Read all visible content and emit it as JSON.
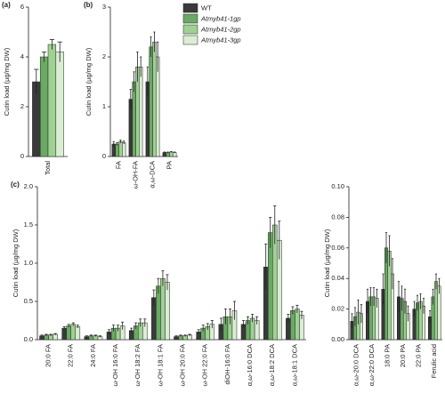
{
  "chart_data": [
    {
      "type": "bar",
      "label": "(a)",
      "ylabel": "Cutin load (µg/mg DW)",
      "categories": [
        "Total"
      ],
      "series": [
        {
          "color": "#3a3a3a",
          "values": [
            3.0
          ],
          "errors": [
            0.5
          ]
        },
        {
          "color": "#6aaa64",
          "values": [
            4.0
          ],
          "errors": [
            0.2
          ]
        },
        {
          "color": "#9fd193",
          "values": [
            4.5
          ],
          "errors": [
            0.2
          ]
        },
        {
          "color": "#d9eed3",
          "values": [
            4.2
          ],
          "errors": [
            0.4
          ]
        }
      ],
      "ylim": [
        0,
        6
      ],
      "yticks": [
        0,
        2,
        4,
        6
      ]
    },
    {
      "type": "bar",
      "label": "(b)",
      "ylabel": "Cutin load (µg/mg DW)",
      "categories": [
        "FA",
        "ω-OH-FA",
        "α,ω-DCA",
        "PA"
      ],
      "series": [
        {
          "name": "WT",
          "color": "#3a3a3a",
          "values": [
            0.25,
            1.15,
            1.5,
            0.08
          ],
          "errors": [
            0.05,
            0.2,
            0.3,
            0.01
          ]
        },
        {
          "name": "Atmyb41-1gp",
          "color": "#6aaa64",
          "values": [
            0.25,
            1.5,
            2.2,
            0.08
          ],
          "errors": [
            0.03,
            0.2,
            0.2,
            0.01
          ]
        },
        {
          "name": "Atmyb41-2gp",
          "color": "#9fd193",
          "values": [
            0.3,
            1.8,
            2.3,
            0.09
          ],
          "errors": [
            0.03,
            0.3,
            0.2,
            0.01
          ]
        },
        {
          "name": "Atmyb41-3gp",
          "color": "#d9eed3",
          "values": [
            0.28,
            1.8,
            2.0,
            0.08
          ],
          "errors": [
            0.03,
            0.2,
            0.3,
            0.01
          ]
        }
      ],
      "ylim": [
        0,
        3
      ],
      "yticks": [
        0,
        1,
        2,
        3
      ],
      "legend": true
    },
    {
      "type": "bar",
      "label": "(c)",
      "ylabel": "Cutin load (µg/mg DW)",
      "categories": [
        "20:0 FA",
        "22:0 FA",
        "24:0 FA",
        "ω-OH 16:0 FA",
        "ω-OH 18:2 FA",
        "ω-OH 18:1 FA",
        "ω-OH 20:0 FA",
        "ω-OH 22:0 FA",
        "diOH-16:0 FA",
        "α,ω-16:0 DCA",
        "α,ω-18:2 DCA",
        "α,ω-18:1 DCA"
      ],
      "series": [
        {
          "color": "#3a3a3a",
          "values": [
            0.05,
            0.15,
            0.04,
            0.1,
            0.12,
            0.55,
            0.04,
            0.1,
            0.2,
            0.2,
            0.95,
            0.28
          ],
          "errors": [
            0.01,
            0.02,
            0.01,
            0.03,
            0.03,
            0.1,
            0.01,
            0.03,
            0.08,
            0.05,
            0.3,
            0.05
          ]
        },
        {
          "color": "#6aaa64",
          "values": [
            0.06,
            0.18,
            0.05,
            0.15,
            0.18,
            0.7,
            0.05,
            0.15,
            0.3,
            0.25,
            1.4,
            0.38
          ],
          "errors": [
            0.01,
            0.02,
            0.01,
            0.04,
            0.04,
            0.1,
            0.01,
            0.04,
            0.1,
            0.05,
            0.2,
            0.05
          ]
        },
        {
          "color": "#9fd193",
          "values": [
            0.06,
            0.2,
            0.05,
            0.15,
            0.22,
            0.8,
            0.05,
            0.17,
            0.3,
            0.28,
            1.5,
            0.4
          ],
          "errors": [
            0.01,
            0.02,
            0.01,
            0.04,
            0.05,
            0.1,
            0.01,
            0.04,
            0.1,
            0.05,
            0.25,
            0.05
          ]
        },
        {
          "color": "#d9eed3",
          "values": [
            0.07,
            0.17,
            0.04,
            0.18,
            0.22,
            0.75,
            0.06,
            0.2,
            0.38,
            0.25,
            1.3,
            0.32
          ],
          "errors": [
            0.01,
            0.02,
            0.01,
            0.05,
            0.05,
            0.1,
            0.01,
            0.05,
            0.12,
            0.05,
            0.25,
            0.05
          ]
        }
      ],
      "ylim": [
        0,
        2
      ],
      "yticks": [
        {
          "value": 0,
          "label": "0.0"
        },
        {
          "value": 0.5,
          "label": "0.5"
        },
        {
          "value": 1,
          "label": "1.0"
        },
        {
          "value": 1.5,
          "label": "1.5"
        },
        {
          "value": 2,
          "label": "2.0"
        }
      ]
    },
    {
      "type": "bar",
      "ylabel": "Cutin load (µg/mg DW)",
      "categories": [
        "α,ω-20:0 DCA",
        "α,ω-22:0 DCA",
        "18:0 PA",
        "20:0 PA",
        "22:0 PA",
        "Ferulic acid"
      ],
      "series": [
        {
          "color": "#3a3a3a",
          "values": [
            0.012,
            0.025,
            0.033,
            0.028,
            0.02,
            0.015
          ],
          "errors": [
            0.005,
            0.008,
            0.01,
            0.01,
            0.005,
            0.004
          ]
        },
        {
          "color": "#6aaa64",
          "values": [
            0.015,
            0.028,
            0.06,
            0.027,
            0.024,
            0.028
          ],
          "errors": [
            0.006,
            0.006,
            0.01,
            0.008,
            0.005,
            0.005
          ]
        },
        {
          "color": "#9fd193",
          "values": [
            0.018,
            0.028,
            0.058,
            0.025,
            0.025,
            0.038
          ],
          "errors": [
            0.008,
            0.006,
            0.01,
            0.008,
            0.005,
            0.005
          ]
        },
        {
          "color": "#d9eed3",
          "values": [
            0.017,
            0.027,
            0.043,
            0.017,
            0.022,
            0.035
          ],
          "errors": [
            0.006,
            0.006,
            0.01,
            0.005,
            0.005,
            0.005
          ]
        }
      ],
      "ylim": [
        0,
        0.1
      ],
      "yticks": [
        {
          "value": 0,
          "label": "0.00"
        },
        {
          "value": 0.02,
          "label": "0.02"
        },
        {
          "value": 0.04,
          "label": "0.04"
        },
        {
          "value": 0.06,
          "label": "0.06"
        },
        {
          "value": 0.08,
          "label": "0.08"
        },
        {
          "value": 0.1,
          "label": "0.10"
        }
      ]
    }
  ]
}
